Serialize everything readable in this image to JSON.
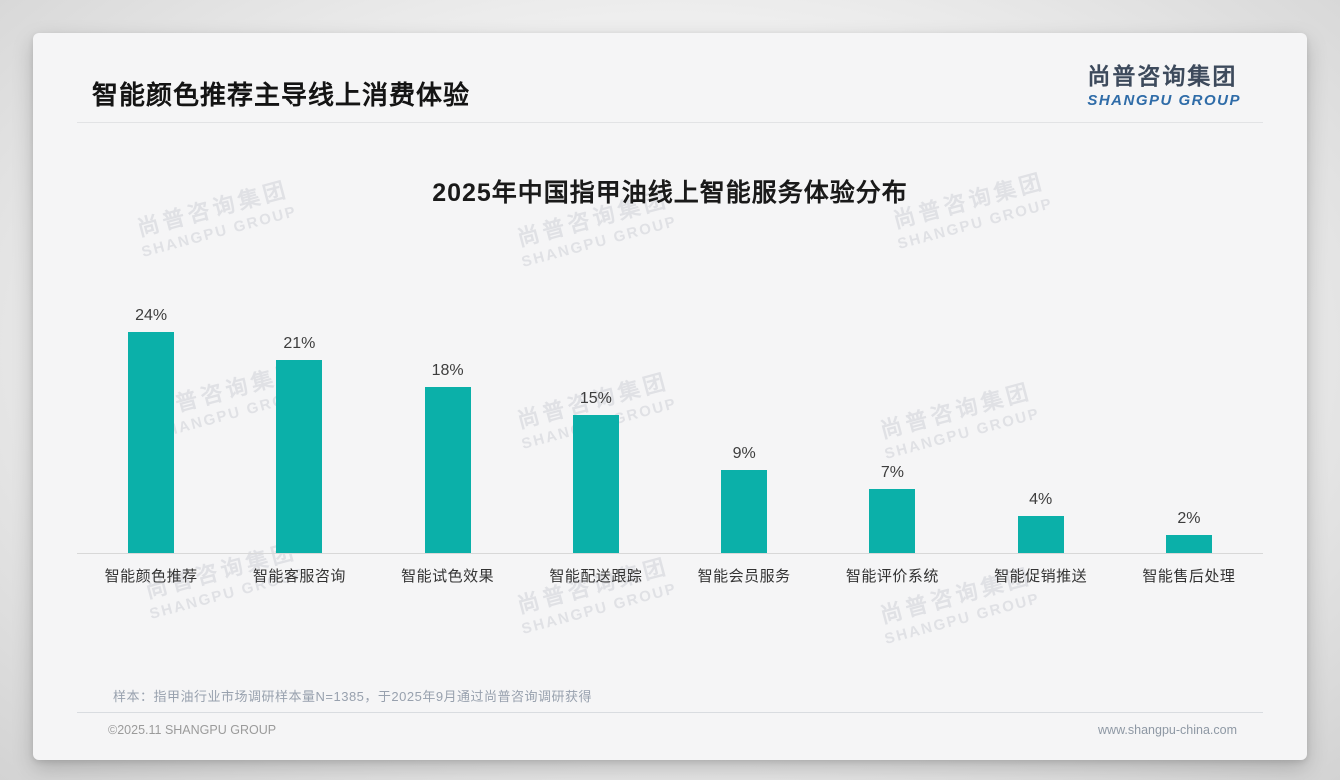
{
  "page": {
    "title": "智能颜色推荐主导线上消费体验",
    "logo": {
      "cn": "尚普咨询集团",
      "en": "SHANGPU GROUP"
    },
    "watermark": {
      "cn": "尚普咨询集团",
      "en": "SHANGPU GROUP"
    },
    "footnote": "样本：指甲油行业市场调研样本量N=1385，于2025年9月通过尚普咨询调研获得",
    "footer": {
      "left": "©2025.11 SHANGPU GROUP",
      "right": "www.shangpu-china.com"
    }
  },
  "chart_data": {
    "type": "bar",
    "title": "2025年中国指甲油线上智能服务体验分布",
    "categories": [
      "智能颜色推荐",
      "智能客服咨询",
      "智能试色效果",
      "智能配送跟踪",
      "智能会员服务",
      "智能评价系统",
      "智能促销推送",
      "智能售后处理"
    ],
    "values": [
      24,
      21,
      18,
      15,
      9,
      7,
      4,
      2
    ],
    "unit": "%",
    "data_labels": [
      "24%",
      "21%",
      "18%",
      "15%",
      "9%",
      "7%",
      "4%",
      "2%"
    ],
    "xlabel": "",
    "ylabel": "",
    "ylim": [
      0,
      26
    ],
    "grid": false,
    "legend": "none",
    "bar_color": "#0bb0a9"
  },
  "colors": {
    "accent_teal": "#0bb0a9",
    "logo_blue": "#2f6ca8",
    "logo_dark": "#3d4a5c",
    "card_bg": "#f5f5f6",
    "text_dark": "#141414",
    "text_gray": "#98a1ae"
  }
}
